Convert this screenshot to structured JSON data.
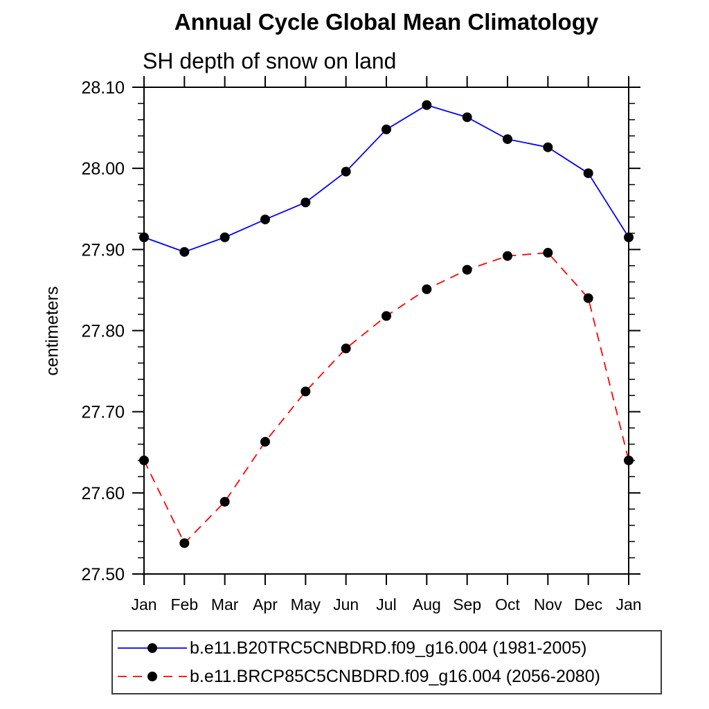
{
  "chart_data": {
    "type": "line",
    "title": "Annual Cycle Global Mean Climatology",
    "subtitle": "SH depth of snow on land",
    "ylabel": "centimeters",
    "xlabel": "",
    "categories": [
      "Jan",
      "Feb",
      "Mar",
      "Apr",
      "May",
      "Jun",
      "Jul",
      "Aug",
      "Sep",
      "Oct",
      "Nov",
      "Dec",
      "Jan"
    ],
    "ylim": [
      27.5,
      28.1
    ],
    "ytick_step": 0.1,
    "ytick_minor_step": 0.02,
    "ytick_label_format": "2dp",
    "grid": false,
    "legend_position": "bottom",
    "marker": {
      "shape": "circle",
      "color": "#000000"
    },
    "axis_color": "#000000",
    "series": [
      {
        "name": "b.e11.B20TRC5CNBDRD.f09_g16.004 (1981-2005)",
        "color": "#0000ff",
        "line_style": "solid",
        "dash": "",
        "values": [
          27.915,
          27.897,
          27.915,
          27.937,
          27.958,
          27.996,
          28.048,
          28.078,
          28.063,
          28.036,
          28.026,
          27.994,
          27.915
        ]
      },
      {
        "name": "b.e11.BRCP85C5CNBDRD.f09_g16.004 (2056-2080)",
        "color": "#ff0000",
        "line_style": "dashed",
        "dash": "13 9",
        "values": [
          27.64,
          27.538,
          27.589,
          27.663,
          27.725,
          27.778,
          27.818,
          27.851,
          27.875,
          27.892,
          27.896,
          27.84,
          27.64
        ]
      }
    ]
  }
}
